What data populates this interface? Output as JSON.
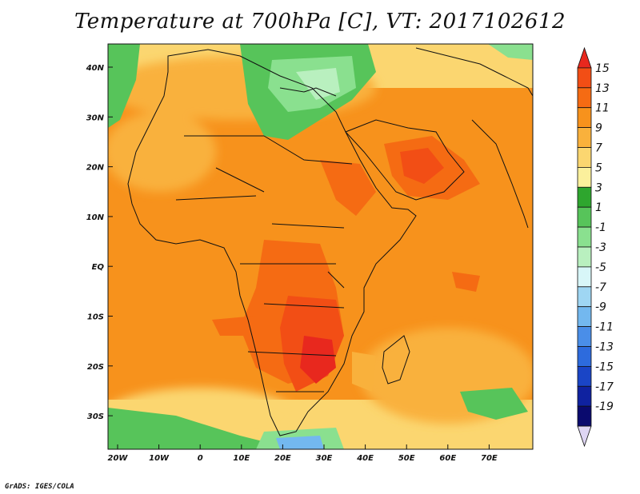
{
  "title": "Temperature at 700hPa [C], VT: 2017102612",
  "credit": "GrADS: IGES/COLA",
  "map": {
    "lat_labels": [
      "40N",
      "30N",
      "20N",
      "10N",
      "EQ",
      "10S",
      "20S",
      "30S"
    ],
    "lon_labels": [
      "20W",
      "10W",
      "0",
      "10E",
      "20E",
      "30E",
      "40E",
      "50E",
      "60E",
      "70E"
    ]
  },
  "colorbar": {
    "labels": [
      "15",
      "13",
      "11",
      "9",
      "7",
      "5",
      "3",
      "1",
      "-1",
      "-3",
      "-5",
      "-7",
      "-9",
      "-11",
      "-13",
      "-15",
      "-17",
      "-19"
    ],
    "colors": [
      "#e8281e",
      "#f24e15",
      "#f56b13",
      "#f7921c",
      "#f9b13c",
      "#fbd670",
      "#fbf09c",
      "#2ea62e",
      "#57c45a",
      "#8ae08f",
      "#b9f0bf",
      "#d8f6f8",
      "#9fd6f3",
      "#73b8ef",
      "#4a8ee8",
      "#2d6bdd",
      "#1a45c6",
      "#0f22a0",
      "#0a0a6e",
      "#ded5f3"
    ]
  }
}
